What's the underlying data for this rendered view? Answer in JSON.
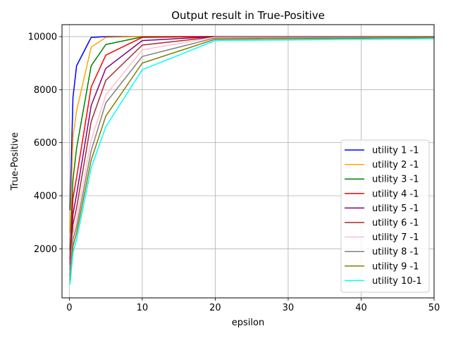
{
  "chart_data": {
    "type": "line",
    "title": "Output result in True-Positive",
    "xlabel": "epsilon",
    "ylabel": "True-Positive",
    "xlim": [
      -1,
      50
    ],
    "ylim": [
      150,
      10450
    ],
    "x_ticks": [
      0,
      10,
      20,
      30,
      40,
      50
    ],
    "y_ticks": [
      2000,
      4000,
      6000,
      8000,
      10000
    ],
    "grid": true,
    "legend_position": "lower-right",
    "x": [
      0.1,
      0.5,
      1,
      3,
      5,
      10,
      20,
      50
    ],
    "series": [
      {
        "name": "utility 1 -1",
        "color": "#0000ff",
        "values": [
          3450,
          7700,
          8900,
          9970,
          10000,
          10000,
          10000,
          10000
        ]
      },
      {
        "name": "utility 2 -1",
        "color": "#ffa500",
        "values": [
          2600,
          6200,
          7200,
          9600,
          9970,
          10000,
          10000,
          10000
        ]
      },
      {
        "name": "utility 3 -1",
        "color": "#008000",
        "values": [
          1950,
          4600,
          5800,
          8900,
          9700,
          9990,
          10000,
          10000
        ]
      },
      {
        "name": "utility 4 -1",
        "color": "#ff0000",
        "values": [
          1600,
          3900,
          4700,
          8100,
          9300,
          9970,
          10000,
          10000
        ]
      },
      {
        "name": "utility 5 -1",
        "color": "#800080",
        "values": [
          1400,
          3300,
          4050,
          7400,
          8800,
          9850,
          10000,
          10000
        ]
      },
      {
        "name": "utility 6 -1",
        "color": "#a52a2a",
        "values": [
          1200,
          2900,
          3550,
          6800,
          8350,
          9680,
          9990,
          10000
        ]
      },
      {
        "name": "utility 7 -1",
        "color": "#ffc0cb",
        "values": [
          1050,
          2550,
          3150,
          6100,
          7800,
          9500,
          9980,
          9990
        ]
      },
      {
        "name": "utility 8 -1",
        "color": "#808080",
        "values": [
          950,
          2350,
          2850,
          5700,
          7500,
          9250,
          9950,
          9980
        ]
      },
      {
        "name": "utility 9 -1",
        "color": "#808000",
        "values": [
          800,
          2100,
          2600,
          5350,
          7000,
          9000,
          9900,
          9960
        ]
      },
      {
        "name": "utility 10-1",
        "color": "#00ffff",
        "values": [
          650,
          1850,
          2350,
          5050,
          6600,
          8750,
          9850,
          9920
        ]
      }
    ]
  }
}
